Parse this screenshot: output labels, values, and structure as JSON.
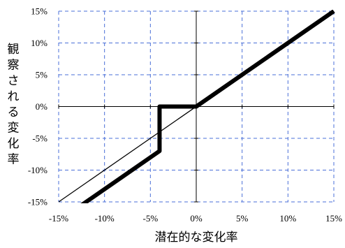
{
  "chart_data": {
    "type": "line",
    "xlabel": "潜在的な変化率",
    "ylabel": "観察される変化率",
    "xlim": [
      -15,
      15
    ],
    "ylim": [
      -15,
      15
    ],
    "x_ticks": [
      -15,
      -10,
      -5,
      0,
      5,
      10,
      15
    ],
    "y_ticks": [
      -15,
      -10,
      -5,
      0,
      5,
      10,
      15
    ],
    "x_tick_labels": [
      "-15%",
      "-10%",
      "-5%",
      "0%",
      "5%",
      "10%",
      "15%"
    ],
    "y_tick_labels": [
      "-15%",
      "-10%",
      "-5%",
      "0%",
      "5%",
      "10%",
      "15%"
    ],
    "grid": true,
    "series": [
      {
        "style": "thin",
        "x": [
          -15,
          15
        ],
        "y": [
          -15,
          15
        ]
      },
      {
        "style": "thick",
        "x": [
          -12.5,
          -4,
          -4,
          -4,
          0,
          15
        ],
        "y": [
          -15.5,
          -7,
          -7,
          0,
          0,
          15
        ]
      }
    ]
  }
}
